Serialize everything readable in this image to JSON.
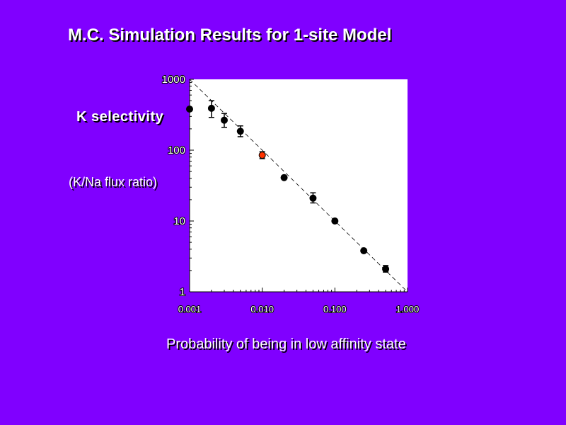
{
  "slide": {
    "title": "M.C. Simulation Results for 1-site Model",
    "ylabel_main": "K selectivity",
    "ylabel_sub": "(K/Na flux ratio)",
    "xlabel": "Probability of being in low  affinity state"
  },
  "chart_data": {
    "type": "scatter",
    "title": "M.C. Simulation Results for 1-site Model",
    "xlabel": "Probability of being in low  affinity state",
    "ylabel": "K selectivity (K/Na flux ratio)",
    "xscale": "log",
    "yscale": "log",
    "xlim": [
      0.001,
      1.0
    ],
    "ylim": [
      1,
      1000
    ],
    "x_ticks": [
      0.001,
      0.01,
      0.1,
      1.0
    ],
    "x_tick_labels": [
      "0.001",
      "0.010",
      "0.100",
      "1.000"
    ],
    "y_ticks": [
      1,
      10,
      100,
      1000
    ],
    "y_tick_labels": [
      "1",
      "10",
      "100",
      "1000"
    ],
    "grid": false,
    "legend": "none",
    "marker_color": "#000000",
    "highlight_color": "#ff3300",
    "plot_background": "#ffffff",
    "series": [
      {
        "points": [
          {
            "x": 0.001,
            "y": 380,
            "err_low": 380,
            "err_high": 380
          },
          {
            "x": 0.002,
            "y": 390,
            "err_low": 290,
            "err_high": 500
          },
          {
            "x": 0.003,
            "y": 265,
            "err_low": 210,
            "err_high": 330
          },
          {
            "x": 0.005,
            "y": 185,
            "err_low": 155,
            "err_high": 220
          },
          {
            "x": 0.01,
            "y": 85,
            "err_low": 76,
            "err_high": 95,
            "highlight": true
          },
          {
            "x": 0.02,
            "y": 41,
            "err_low": 41,
            "err_high": 41
          },
          {
            "x": 0.05,
            "y": 21,
            "err_low": 18,
            "err_high": 25
          },
          {
            "x": 0.1,
            "y": 10,
            "err_low": 10,
            "err_high": 10
          },
          {
            "x": 0.25,
            "y": 3.8,
            "err_low": 3.8,
            "err_high": 3.8
          },
          {
            "x": 0.5,
            "y": 2.1,
            "err_low": 1.9,
            "err_high": 2.35
          }
        ]
      }
    ],
    "reference_line": {
      "style": "dashed",
      "from": {
        "x": 0.001,
        "y": 1000
      },
      "to": {
        "x": 1.0,
        "y": 1
      }
    }
  }
}
